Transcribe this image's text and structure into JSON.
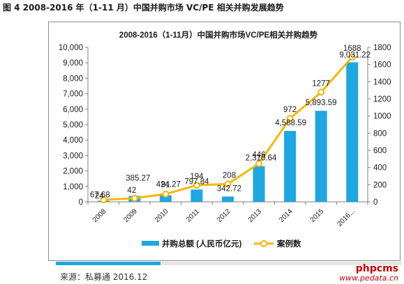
{
  "figure_caption": "图 4 2008-2016 年（1-11 月）中国并购市场 VC/PE 相关并购发展趋势",
  "source_text": "来源：私募通 2016.12",
  "watermark": {
    "line1": "phpcms",
    "line2": "www.pedata.cn"
  },
  "colors": {
    "bar": "#1ea7e1",
    "line": "#f5b800",
    "marker_fill": "#ffffff",
    "source_bar": "#1ea7e1"
  },
  "chart_data": {
    "type": "bar",
    "title": "2008-2016（1-11月）中国并购市场VC/PE相关并购趋势",
    "categories": [
      "2008",
      "2009",
      "2010",
      "2011",
      "2012",
      "2013",
      "2014",
      "2015",
      "2016..."
    ],
    "series": [
      {
        "name": "并购总额 (人民币亿元)",
        "type": "bar",
        "axis": "left",
        "values": [
          67.68,
          385.27,
          424.27,
          797.84,
          342.72,
          2310.64,
          4588.59,
          5893.59,
          9031.22
        ],
        "labels": [
          "67.68",
          "385.27",
          "424.27",
          "797.84",
          "342.72",
          "2,310.64",
          "4,588.59",
          "5,893.59",
          "9,031.22"
        ]
      },
      {
        "name": "案例数",
        "type": "line",
        "axis": "right",
        "values": [
          24,
          42,
          91,
          194,
          208,
          446,
          972,
          1277,
          1688
        ],
        "labels": [
          "24",
          "42",
          "91",
          "194",
          "208",
          "446",
          "972",
          "1277",
          "1688"
        ]
      }
    ],
    "y_left": {
      "min": 0,
      "max": 10000,
      "ticks": [
        "0",
        "1,000",
        "2,000",
        "3,000",
        "4,000",
        "5,000",
        "6,000",
        "7,000",
        "8,000",
        "9,000",
        "10,000"
      ]
    },
    "y_right": {
      "min": 0,
      "max": 1800,
      "ticks": [
        "0",
        "200",
        "400",
        "600",
        "800",
        "1000",
        "1200",
        "1400",
        "1600",
        "1800"
      ]
    },
    "grid": false,
    "legend": "bottom"
  }
}
